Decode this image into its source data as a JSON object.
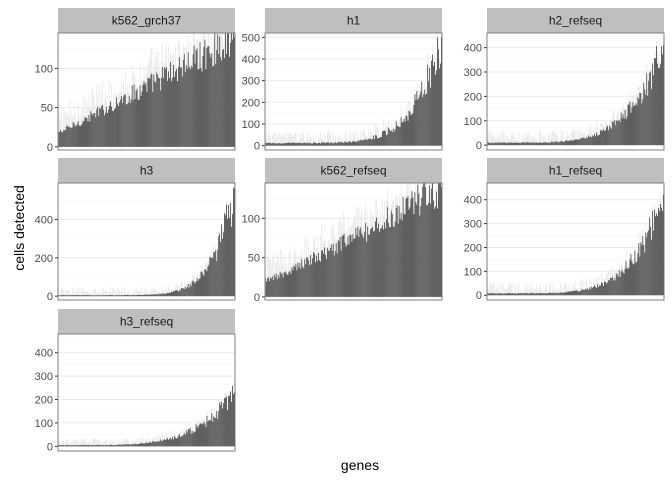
{
  "chart_data": {
    "type": "bar",
    "xlabel": "genes",
    "ylabel": "cells detected",
    "grid": true,
    "colors": {
      "bar": "#444444",
      "error_bar": "#e6e6e6",
      "strip_fill": "#bfbfbf",
      "panel_border": "#7f7f7f",
      "grid_major": "#ebebeb",
      "grid_minor": "#f5f5f5"
    },
    "panels": [
      {
        "strip": "k562_grch37",
        "ylim": [
          -4,
          145
        ],
        "yticks": [
          0,
          50,
          100
        ],
        "n_genes": 180,
        "min": 18,
        "max": 140,
        "shape": 1.05,
        "spread": 0.18,
        "upper_error": 35
      },
      {
        "strip": "h1",
        "ylim": [
          -20,
          520
        ],
        "yticks": [
          0,
          100,
          200,
          300,
          400,
          500
        ],
        "n_genes": 180,
        "min": 12,
        "max": 500,
        "shape": 6,
        "spread": 0.25,
        "upper_error": 55
      },
      {
        "strip": "h2_refseq",
        "ylim": [
          -20,
          460
        ],
        "yticks": [
          0,
          100,
          200,
          300,
          400
        ],
        "n_genes": 180,
        "min": 10,
        "max": 410,
        "shape": 5,
        "spread": 0.22,
        "upper_error": 50
      },
      {
        "strip": "h3",
        "ylim": [
          -20,
          590
        ],
        "yticks": [
          0,
          200,
          400
        ],
        "n_genes": 180,
        "min": 5,
        "max": 560,
        "shape": 8,
        "spread": 0.25,
        "upper_error": 45
      },
      {
        "strip": "k562_refseq",
        "ylim": [
          -4,
          145
        ],
        "yticks": [
          0,
          50,
          100
        ],
        "n_genes": 180,
        "min": 20,
        "max": 140,
        "shape": 1.1,
        "spread": 0.18,
        "upper_error": 35
      },
      {
        "strip": "h1_refseq",
        "ylim": [
          -20,
          470
        ],
        "yticks": [
          0,
          100,
          200,
          300,
          400
        ],
        "n_genes": 180,
        "min": 8,
        "max": 420,
        "shape": 5.5,
        "spread": 0.22,
        "upper_error": 45
      },
      {
        "strip": "h3_refseq",
        "ylim": [
          -20,
          480
        ],
        "yticks": [
          0,
          100,
          200,
          300,
          400
        ],
        "n_genes": 180,
        "min": 5,
        "max": 230,
        "shape": 4.5,
        "spread": 0.22,
        "upper_error": 30
      }
    ]
  }
}
